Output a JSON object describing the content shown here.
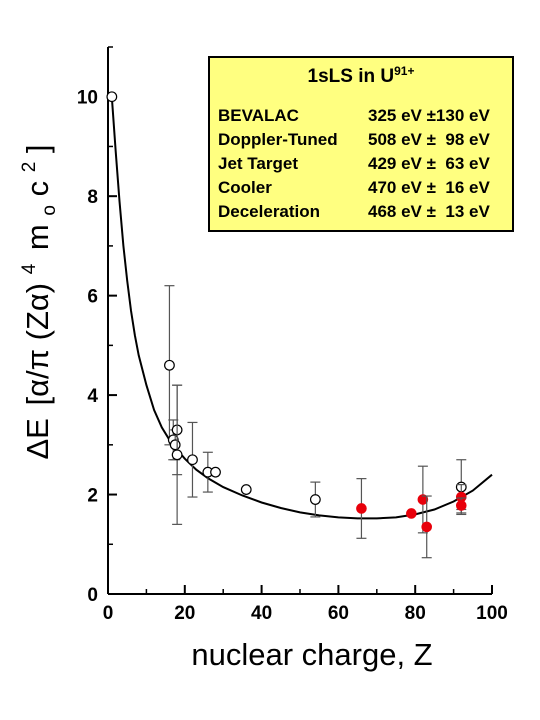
{
  "chart_data": {
    "type": "scatter",
    "xlabel": "nuclear charge, Z",
    "ylabel_parts": {
      "delta_e": "ΔE",
      "bracket_open": "[α/π (Zα)",
      "power4": "4",
      "mass": "m",
      "sub_o": "o",
      "c": "c",
      "power2": "2",
      "bracket_close": "]"
    },
    "xlim": [
      0,
      100
    ],
    "ylim": [
      0,
      11
    ],
    "x_ticks": [
      0,
      20,
      40,
      60,
      80,
      100
    ],
    "y_ticks": [
      0,
      2,
      4,
      6,
      8,
      10
    ],
    "grid": false,
    "legend_placement": "top-right",
    "series": [
      {
        "marker": "open-circle",
        "color": "#000000",
        "points": [
          {
            "x": 1,
            "y": 10.0,
            "err": 0.0
          },
          {
            "x": 16,
            "y": 4.6,
            "err": 1.6
          },
          {
            "x": 17,
            "y": 3.1,
            "err": 0.4
          },
          {
            "x": 17.5,
            "y": 3.0,
            "err": 0.3
          },
          {
            "x": 18,
            "y": 3.3,
            "err": 0.9
          },
          {
            "x": 18,
            "y": 2.8,
            "err": 1.4
          },
          {
            "x": 22,
            "y": 2.7,
            "err": 0.75
          },
          {
            "x": 26,
            "y": 2.45,
            "err": 0.4
          },
          {
            "x": 28,
            "y": 2.45,
            "err": 0.0
          },
          {
            "x": 36,
            "y": 2.1,
            "err": 0.0
          },
          {
            "x": 54,
            "y": 1.9,
            "err": 0.35
          },
          {
            "x": 92,
            "y": 2.15,
            "err": 0.55
          }
        ]
      },
      {
        "marker": "filled-circle",
        "color": "#e8000b",
        "points": [
          {
            "x": 66,
            "y": 1.72,
            "err": 0.6
          },
          {
            "x": 79,
            "y": 1.62,
            "err": 0.0
          },
          {
            "x": 82,
            "y": 1.9,
            "err": 0.67
          },
          {
            "x": 83,
            "y": 1.35,
            "err": 0.62
          },
          {
            "x": 92,
            "y": 1.95,
            "err": 0.25
          },
          {
            "x": 92,
            "y": 1.78,
            "err": 0.15
          }
        ]
      }
    ],
    "fit_curve": {
      "x": [
        1,
        2,
        3,
        4,
        5,
        6,
        7,
        8,
        10,
        12,
        14,
        16,
        18,
        20,
        23,
        26,
        30,
        35,
        40,
        45,
        50,
        55,
        60,
        65,
        68,
        70,
        75,
        80,
        85,
        90,
        95,
        100
      ],
      "y": [
        10.0,
        8.9,
        7.9,
        7.0,
        6.3,
        5.7,
        5.2,
        4.8,
        4.2,
        3.7,
        3.35,
        3.1,
        2.9,
        2.72,
        2.5,
        2.33,
        2.15,
        1.98,
        1.84,
        1.73,
        1.64,
        1.58,
        1.54,
        1.52,
        1.52,
        1.52,
        1.54,
        1.6,
        1.7,
        1.86,
        2.08,
        2.4
      ]
    },
    "legend": {
      "title": "1sLS in U",
      "title_sup": "91+",
      "entries": [
        {
          "label": "BEVALAC",
          "value": "325 eV ±130 eV"
        },
        {
          "label": "Doppler-Tuned",
          "value": "508 eV ±  98 eV"
        },
        {
          "label": "Jet Target",
          "value": "429 eV ±  63 eV"
        },
        {
          "label": "Cooler",
          "value": "470 eV ±  16 eV"
        },
        {
          "label": "Deceleration",
          "value": "468 eV ±  13 eV"
        }
      ]
    }
  }
}
